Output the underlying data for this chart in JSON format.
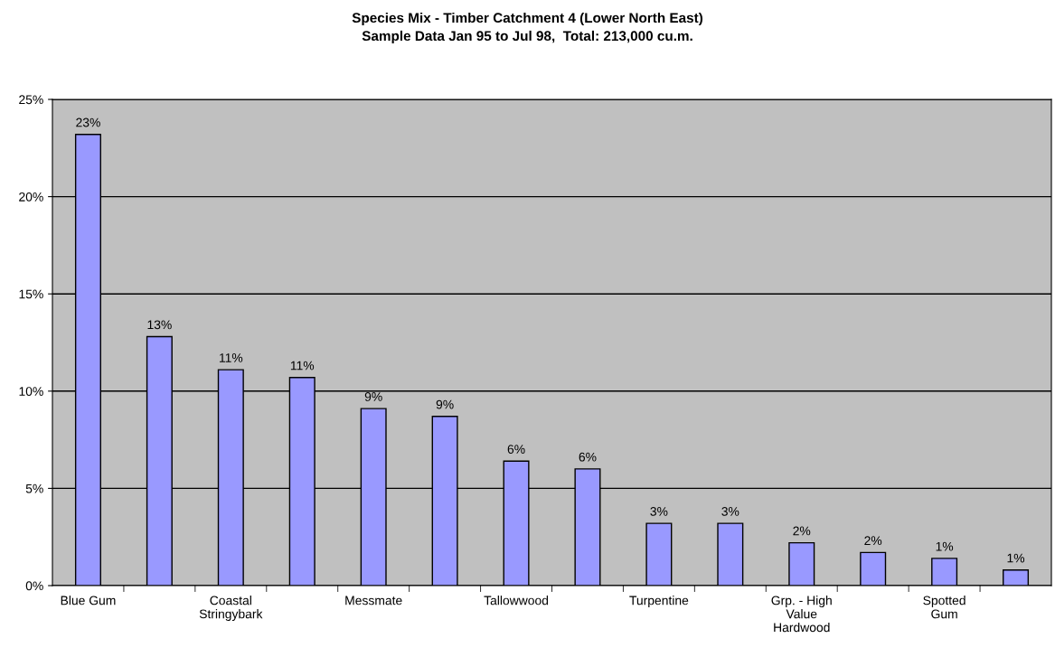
{
  "chart_data": {
    "type": "bar",
    "title": "Species Mix - Timber Catchment 4 (Lower North East)",
    "subtitle": "Sample Data Jan 95 to Jul 98,  Total: 213,000 cu.m.",
    "categories": [
      "Blue Gum",
      null,
      "Coastal\nStringybark",
      null,
      "Messmate",
      null,
      "Tallowwood",
      null,
      "Turpentine",
      null,
      "Grp. - High\nValue\nHardwood",
      null,
      "Spotted\nGum",
      null
    ],
    "values": [
      23.2,
      12.8,
      11.1,
      10.7,
      9.1,
      8.7,
      6.4,
      6.0,
      3.2,
      3.2,
      2.2,
      1.7,
      1.4,
      0.8
    ],
    "value_labels": [
      "23%",
      "13%",
      "11%",
      "11%",
      "9%",
      "9%",
      "6%",
      "6%",
      "3%",
      "3%",
      "2%",
      "2%",
      "1%",
      "1%"
    ],
    "color": "#9999ff",
    "ylim": [
      0,
      25
    ],
    "yticks": [
      {
        "value": 0,
        "label": "0%"
      },
      {
        "value": 5,
        "label": "5%"
      },
      {
        "value": 10,
        "label": "10%"
      },
      {
        "value": 15,
        "label": "15%"
      },
      {
        "value": 20,
        "label": "20%"
      },
      {
        "value": 25,
        "label": "25%"
      }
    ],
    "grid": "y"
  }
}
